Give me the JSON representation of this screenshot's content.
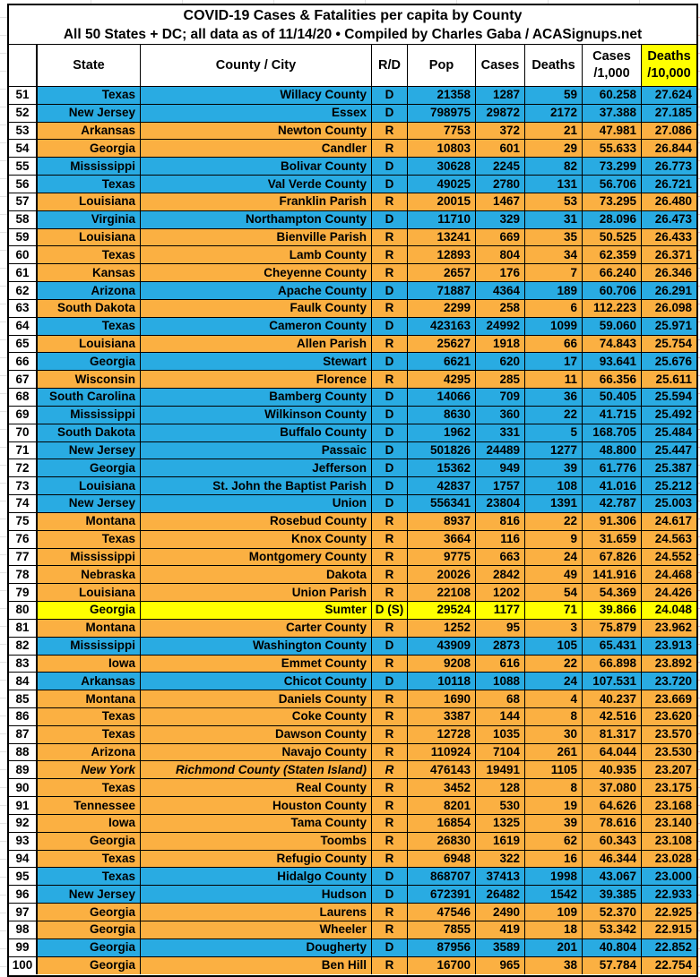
{
  "title": {
    "line1": "COVID-19 Cases & Fatalities per capita by County",
    "line2": "All 50 States + DC; all data as of 11/14/20 • Compiled by Charles Gaba / ACASignups.net"
  },
  "colors": {
    "democrat_row": "#29ABE2",
    "republican_row": "#FBB042",
    "special_row": "#FFFF00",
    "deaths_header_highlight": "#FFFF00",
    "text": "#000000"
  },
  "table": {
    "columns": [
      {
        "label": ""
      },
      {
        "label": "State"
      },
      {
        "label": "County / City"
      },
      {
        "label": "R/D"
      },
      {
        "label": "Pop"
      },
      {
        "label": "Cases"
      },
      {
        "label": "Deaths"
      },
      {
        "label": "Cases\n/1,000"
      },
      {
        "label": "Deaths\n/10,000"
      }
    ],
    "rows": [
      {
        "n": "51",
        "state": "Texas",
        "county": "Willacy County",
        "rd": "D",
        "pop": "21358",
        "cases": "1287",
        "deaths": "59",
        "c1k": "60.258",
        "d10k": "27.624",
        "bg": "blue"
      },
      {
        "n": "52",
        "state": "New Jersey",
        "county": "Essex",
        "rd": "D",
        "pop": "798975",
        "cases": "29872",
        "deaths": "2172",
        "c1k": "37.388",
        "d10k": "27.185",
        "bg": "blue"
      },
      {
        "n": "53",
        "state": "Arkansas",
        "county": "Newton County",
        "rd": "R",
        "pop": "7753",
        "cases": "372",
        "deaths": "21",
        "c1k": "47.981",
        "d10k": "27.086",
        "bg": "orange"
      },
      {
        "n": "54",
        "state": "Georgia",
        "county": "Candler",
        "rd": "R",
        "pop": "10803",
        "cases": "601",
        "deaths": "29",
        "c1k": "55.633",
        "d10k": "26.844",
        "bg": "orange"
      },
      {
        "n": "55",
        "state": "Mississippi",
        "county": "Bolivar County",
        "rd": "D",
        "pop": "30628",
        "cases": "2245",
        "deaths": "82",
        "c1k": "73.299",
        "d10k": "26.773",
        "bg": "blue"
      },
      {
        "n": "56",
        "state": "Texas",
        "county": "Val Verde County",
        "rd": "D",
        "pop": "49025",
        "cases": "2780",
        "deaths": "131",
        "c1k": "56.706",
        "d10k": "26.721",
        "bg": "blue"
      },
      {
        "n": "57",
        "state": "Louisiana",
        "county": "Franklin Parish",
        "rd": "R",
        "pop": "20015",
        "cases": "1467",
        "deaths": "53",
        "c1k": "73.295",
        "d10k": "26.480",
        "bg": "orange"
      },
      {
        "n": "58",
        "state": "Virginia",
        "county": "Northampton County",
        "rd": "D",
        "pop": "11710",
        "cases": "329",
        "deaths": "31",
        "c1k": "28.096",
        "d10k": "26.473",
        "bg": "blue"
      },
      {
        "n": "59",
        "state": "Louisiana",
        "county": "Bienville Parish",
        "rd": "R",
        "pop": "13241",
        "cases": "669",
        "deaths": "35",
        "c1k": "50.525",
        "d10k": "26.433",
        "bg": "orange"
      },
      {
        "n": "60",
        "state": "Texas",
        "county": "Lamb County",
        "rd": "R",
        "pop": "12893",
        "cases": "804",
        "deaths": "34",
        "c1k": "62.359",
        "d10k": "26.371",
        "bg": "orange"
      },
      {
        "n": "61",
        "state": "Kansas",
        "county": "Cheyenne County",
        "rd": "R",
        "pop": "2657",
        "cases": "176",
        "deaths": "7",
        "c1k": "66.240",
        "d10k": "26.346",
        "bg": "orange"
      },
      {
        "n": "62",
        "state": "Arizona",
        "county": "Apache County",
        "rd": "D",
        "pop": "71887",
        "cases": "4364",
        "deaths": "189",
        "c1k": "60.706",
        "d10k": "26.291",
        "bg": "blue"
      },
      {
        "n": "63",
        "state": "South Dakota",
        "county": "Faulk County",
        "rd": "R",
        "pop": "2299",
        "cases": "258",
        "deaths": "6",
        "c1k": "112.223",
        "d10k": "26.098",
        "bg": "orange"
      },
      {
        "n": "64",
        "state": "Texas",
        "county": "Cameron County",
        "rd": "D",
        "pop": "423163",
        "cases": "24992",
        "deaths": "1099",
        "c1k": "59.060",
        "d10k": "25.971",
        "bg": "blue"
      },
      {
        "n": "65",
        "state": "Louisiana",
        "county": "Allen Parish",
        "rd": "R",
        "pop": "25627",
        "cases": "1918",
        "deaths": "66",
        "c1k": "74.843",
        "d10k": "25.754",
        "bg": "orange"
      },
      {
        "n": "66",
        "state": "Georgia",
        "county": "Stewart",
        "rd": "D",
        "pop": "6621",
        "cases": "620",
        "deaths": "17",
        "c1k": "93.641",
        "d10k": "25.676",
        "bg": "blue"
      },
      {
        "n": "67",
        "state": "Wisconsin",
        "county": "Florence",
        "rd": "R",
        "pop": "4295",
        "cases": "285",
        "deaths": "11",
        "c1k": "66.356",
        "d10k": "25.611",
        "bg": "orange"
      },
      {
        "n": "68",
        "state": "South Carolina",
        "county": "Bamberg County",
        "rd": "D",
        "pop": "14066",
        "cases": "709",
        "deaths": "36",
        "c1k": "50.405",
        "d10k": "25.594",
        "bg": "blue"
      },
      {
        "n": "69",
        "state": "Mississippi",
        "county": "Wilkinson County",
        "rd": "D",
        "pop": "8630",
        "cases": "360",
        "deaths": "22",
        "c1k": "41.715",
        "d10k": "25.492",
        "bg": "blue"
      },
      {
        "n": "70",
        "state": "South Dakota",
        "county": "Buffalo County",
        "rd": "D",
        "pop": "1962",
        "cases": "331",
        "deaths": "5",
        "c1k": "168.705",
        "d10k": "25.484",
        "bg": "blue"
      },
      {
        "n": "71",
        "state": "New Jersey",
        "county": "Passaic",
        "rd": "D",
        "pop": "501826",
        "cases": "24489",
        "deaths": "1277",
        "c1k": "48.800",
        "d10k": "25.447",
        "bg": "blue"
      },
      {
        "n": "72",
        "state": "Georgia",
        "county": "Jefferson",
        "rd": "D",
        "pop": "15362",
        "cases": "949",
        "deaths": "39",
        "c1k": "61.776",
        "d10k": "25.387",
        "bg": "blue"
      },
      {
        "n": "73",
        "state": "Louisiana",
        "county": "St. John the Baptist Parish",
        "rd": "D",
        "pop": "42837",
        "cases": "1757",
        "deaths": "108",
        "c1k": "41.016",
        "d10k": "25.212",
        "bg": "blue"
      },
      {
        "n": "74",
        "state": "New Jersey",
        "county": "Union",
        "rd": "D",
        "pop": "556341",
        "cases": "23804",
        "deaths": "1391",
        "c1k": "42.787",
        "d10k": "25.003",
        "bg": "blue"
      },
      {
        "n": "75",
        "state": "Montana",
        "county": "Rosebud County",
        "rd": "R",
        "pop": "8937",
        "cases": "816",
        "deaths": "22",
        "c1k": "91.306",
        "d10k": "24.617",
        "bg": "orange"
      },
      {
        "n": "76",
        "state": "Texas",
        "county": "Knox County",
        "rd": "R",
        "pop": "3664",
        "cases": "116",
        "deaths": "9",
        "c1k": "31.659",
        "d10k": "24.563",
        "bg": "orange"
      },
      {
        "n": "77",
        "state": "Mississippi",
        "county": "Montgomery County",
        "rd": "R",
        "pop": "9775",
        "cases": "663",
        "deaths": "24",
        "c1k": "67.826",
        "d10k": "24.552",
        "bg": "orange"
      },
      {
        "n": "78",
        "state": "Nebraska",
        "county": "Dakota",
        "rd": "R",
        "pop": "20026",
        "cases": "2842",
        "deaths": "49",
        "c1k": "141.916",
        "d10k": "24.468",
        "bg": "orange"
      },
      {
        "n": "79",
        "state": "Louisiana",
        "county": "Union Parish",
        "rd": "R",
        "pop": "22108",
        "cases": "1202",
        "deaths": "54",
        "c1k": "54.369",
        "d10k": "24.426",
        "bg": "orange"
      },
      {
        "n": "80",
        "state": "Georgia",
        "county": "Sumter",
        "rd": "D (S)",
        "pop": "29524",
        "cases": "1177",
        "deaths": "71",
        "c1k": "39.866",
        "d10k": "24.048",
        "bg": "yellow"
      },
      {
        "n": "81",
        "state": "Montana",
        "county": "Carter County",
        "rd": "R",
        "pop": "1252",
        "cases": "95",
        "deaths": "3",
        "c1k": "75.879",
        "d10k": "23.962",
        "bg": "orange"
      },
      {
        "n": "82",
        "state": "Mississippi",
        "county": "Washington County",
        "rd": "D",
        "pop": "43909",
        "cases": "2873",
        "deaths": "105",
        "c1k": "65.431",
        "d10k": "23.913",
        "bg": "blue"
      },
      {
        "n": "83",
        "state": "Iowa",
        "county": "Emmet County",
        "rd": "R",
        "pop": "9208",
        "cases": "616",
        "deaths": "22",
        "c1k": "66.898",
        "d10k": "23.892",
        "bg": "orange"
      },
      {
        "n": "84",
        "state": "Arkansas",
        "county": "Chicot County",
        "rd": "D",
        "pop": "10118",
        "cases": "1088",
        "deaths": "24",
        "c1k": "107.531",
        "d10k": "23.720",
        "bg": "blue"
      },
      {
        "n": "85",
        "state": "Montana",
        "county": "Daniels County",
        "rd": "R",
        "pop": "1690",
        "cases": "68",
        "deaths": "4",
        "c1k": "40.237",
        "d10k": "23.669",
        "bg": "orange"
      },
      {
        "n": "86",
        "state": "Texas",
        "county": "Coke County",
        "rd": "R",
        "pop": "3387",
        "cases": "144",
        "deaths": "8",
        "c1k": "42.516",
        "d10k": "23.620",
        "bg": "orange"
      },
      {
        "n": "87",
        "state": "Texas",
        "county": "Dawson County",
        "rd": "R",
        "pop": "12728",
        "cases": "1035",
        "deaths": "30",
        "c1k": "81.317",
        "d10k": "23.570",
        "bg": "orange"
      },
      {
        "n": "88",
        "state": "Arizona",
        "county": "Navajo County",
        "rd": "R",
        "pop": "110924",
        "cases": "7104",
        "deaths": "261",
        "c1k": "64.044",
        "d10k": "23.530",
        "bg": "orange"
      },
      {
        "n": "89",
        "state": "New York",
        "county": "Richmond County (Staten Island)",
        "rd": "R",
        "pop": "476143",
        "cases": "19491",
        "deaths": "1105",
        "c1k": "40.935",
        "d10k": "23.207",
        "bg": "orange",
        "it": true
      },
      {
        "n": "90",
        "state": "Texas",
        "county": "Real County",
        "rd": "R",
        "pop": "3452",
        "cases": "128",
        "deaths": "8",
        "c1k": "37.080",
        "d10k": "23.175",
        "bg": "orange"
      },
      {
        "n": "91",
        "state": "Tennessee",
        "county": "Houston County",
        "rd": "R",
        "pop": "8201",
        "cases": "530",
        "deaths": "19",
        "c1k": "64.626",
        "d10k": "23.168",
        "bg": "orange"
      },
      {
        "n": "92",
        "state": "Iowa",
        "county": "Tama County",
        "rd": "R",
        "pop": "16854",
        "cases": "1325",
        "deaths": "39",
        "c1k": "78.616",
        "d10k": "23.140",
        "bg": "orange"
      },
      {
        "n": "93",
        "state": "Georgia",
        "county": "Toombs",
        "rd": "R",
        "pop": "26830",
        "cases": "1619",
        "deaths": "62",
        "c1k": "60.343",
        "d10k": "23.108",
        "bg": "orange"
      },
      {
        "n": "94",
        "state": "Texas",
        "county": "Refugio County",
        "rd": "R",
        "pop": "6948",
        "cases": "322",
        "deaths": "16",
        "c1k": "46.344",
        "d10k": "23.028",
        "bg": "orange"
      },
      {
        "n": "95",
        "state": "Texas",
        "county": "Hidalgo County",
        "rd": "D",
        "pop": "868707",
        "cases": "37413",
        "deaths": "1998",
        "c1k": "43.067",
        "d10k": "23.000",
        "bg": "blue"
      },
      {
        "n": "96",
        "state": "New Jersey",
        "county": "Hudson",
        "rd": "D",
        "pop": "672391",
        "cases": "26482",
        "deaths": "1542",
        "c1k": "39.385",
        "d10k": "22.933",
        "bg": "blue"
      },
      {
        "n": "97",
        "state": "Georgia",
        "county": "Laurens",
        "rd": "R",
        "pop": "47546",
        "cases": "2490",
        "deaths": "109",
        "c1k": "52.370",
        "d10k": "22.925",
        "bg": "orange"
      },
      {
        "n": "98",
        "state": "Georgia",
        "county": "Wheeler",
        "rd": "R",
        "pop": "7855",
        "cases": "419",
        "deaths": "18",
        "c1k": "53.342",
        "d10k": "22.915",
        "bg": "orange"
      },
      {
        "n": "99",
        "state": "Georgia",
        "county": "Dougherty",
        "rd": "D",
        "pop": "87956",
        "cases": "3589",
        "deaths": "201",
        "c1k": "40.804",
        "d10k": "22.852",
        "bg": "blue"
      },
      {
        "n": "100",
        "state": "Georgia",
        "county": "Ben Hill",
        "rd": "R",
        "pop": "16700",
        "cases": "965",
        "deaths": "38",
        "c1k": "57.784",
        "d10k": "22.754",
        "bg": "orange"
      }
    ]
  }
}
